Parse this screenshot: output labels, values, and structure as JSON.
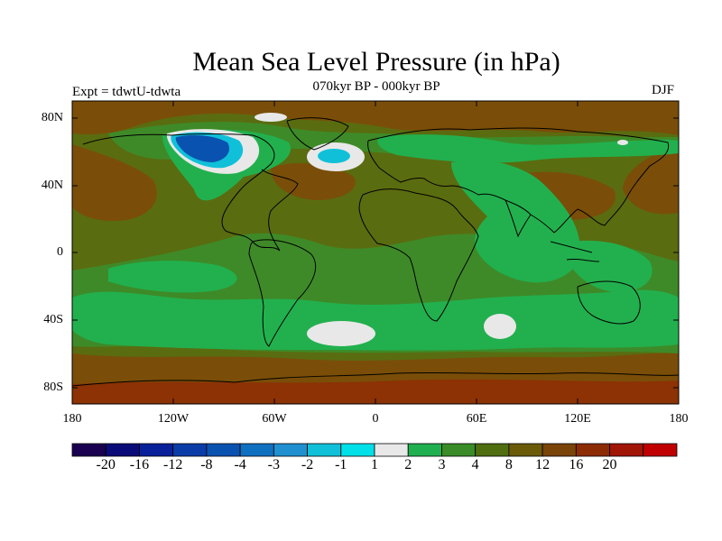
{
  "title": "Mean Sea Level Pressure (in hPa)",
  "subtitle": "070kyr BP - 000kyr BP",
  "experiment": "Expt = tdwtU-tdwta",
  "season": "DJF",
  "lat_labels": [
    "80N",
    "40N",
    "0",
    "40S",
    "80S"
  ],
  "lon_labels": [
    "180",
    "120W",
    "60W",
    "0",
    "60E",
    "120E",
    "180"
  ],
  "colorbar": {
    "labels": [
      "-20",
      "-16",
      "-12",
      "-8",
      "-4",
      "-3",
      "-2",
      "-1",
      "1",
      "2",
      "3",
      "4",
      "8",
      "12",
      "16",
      "20"
    ],
    "colors": [
      "#1a0050",
      "#0a0a78",
      "#08209a",
      "#0a3ca8",
      "#0a52b0",
      "#1070c0",
      "#2090d0",
      "#10c0d8",
      "#00e0e8",
      "#e8e8e8",
      "#20b050",
      "#3a8c28",
      "#4f6e10",
      "#6b5a08",
      "#7a4408",
      "#8c2c05",
      "#a01505",
      "#c00000"
    ]
  },
  "map_colors": {
    "brown": "#7a4e08",
    "olive": "#5a6c10",
    "dark_green": "#3e8a28",
    "green": "#22b04e",
    "gray": "#e8e8e8",
    "cyan": "#10c0d8",
    "blue": "#0a52b0",
    "rust": "#8c3205"
  }
}
